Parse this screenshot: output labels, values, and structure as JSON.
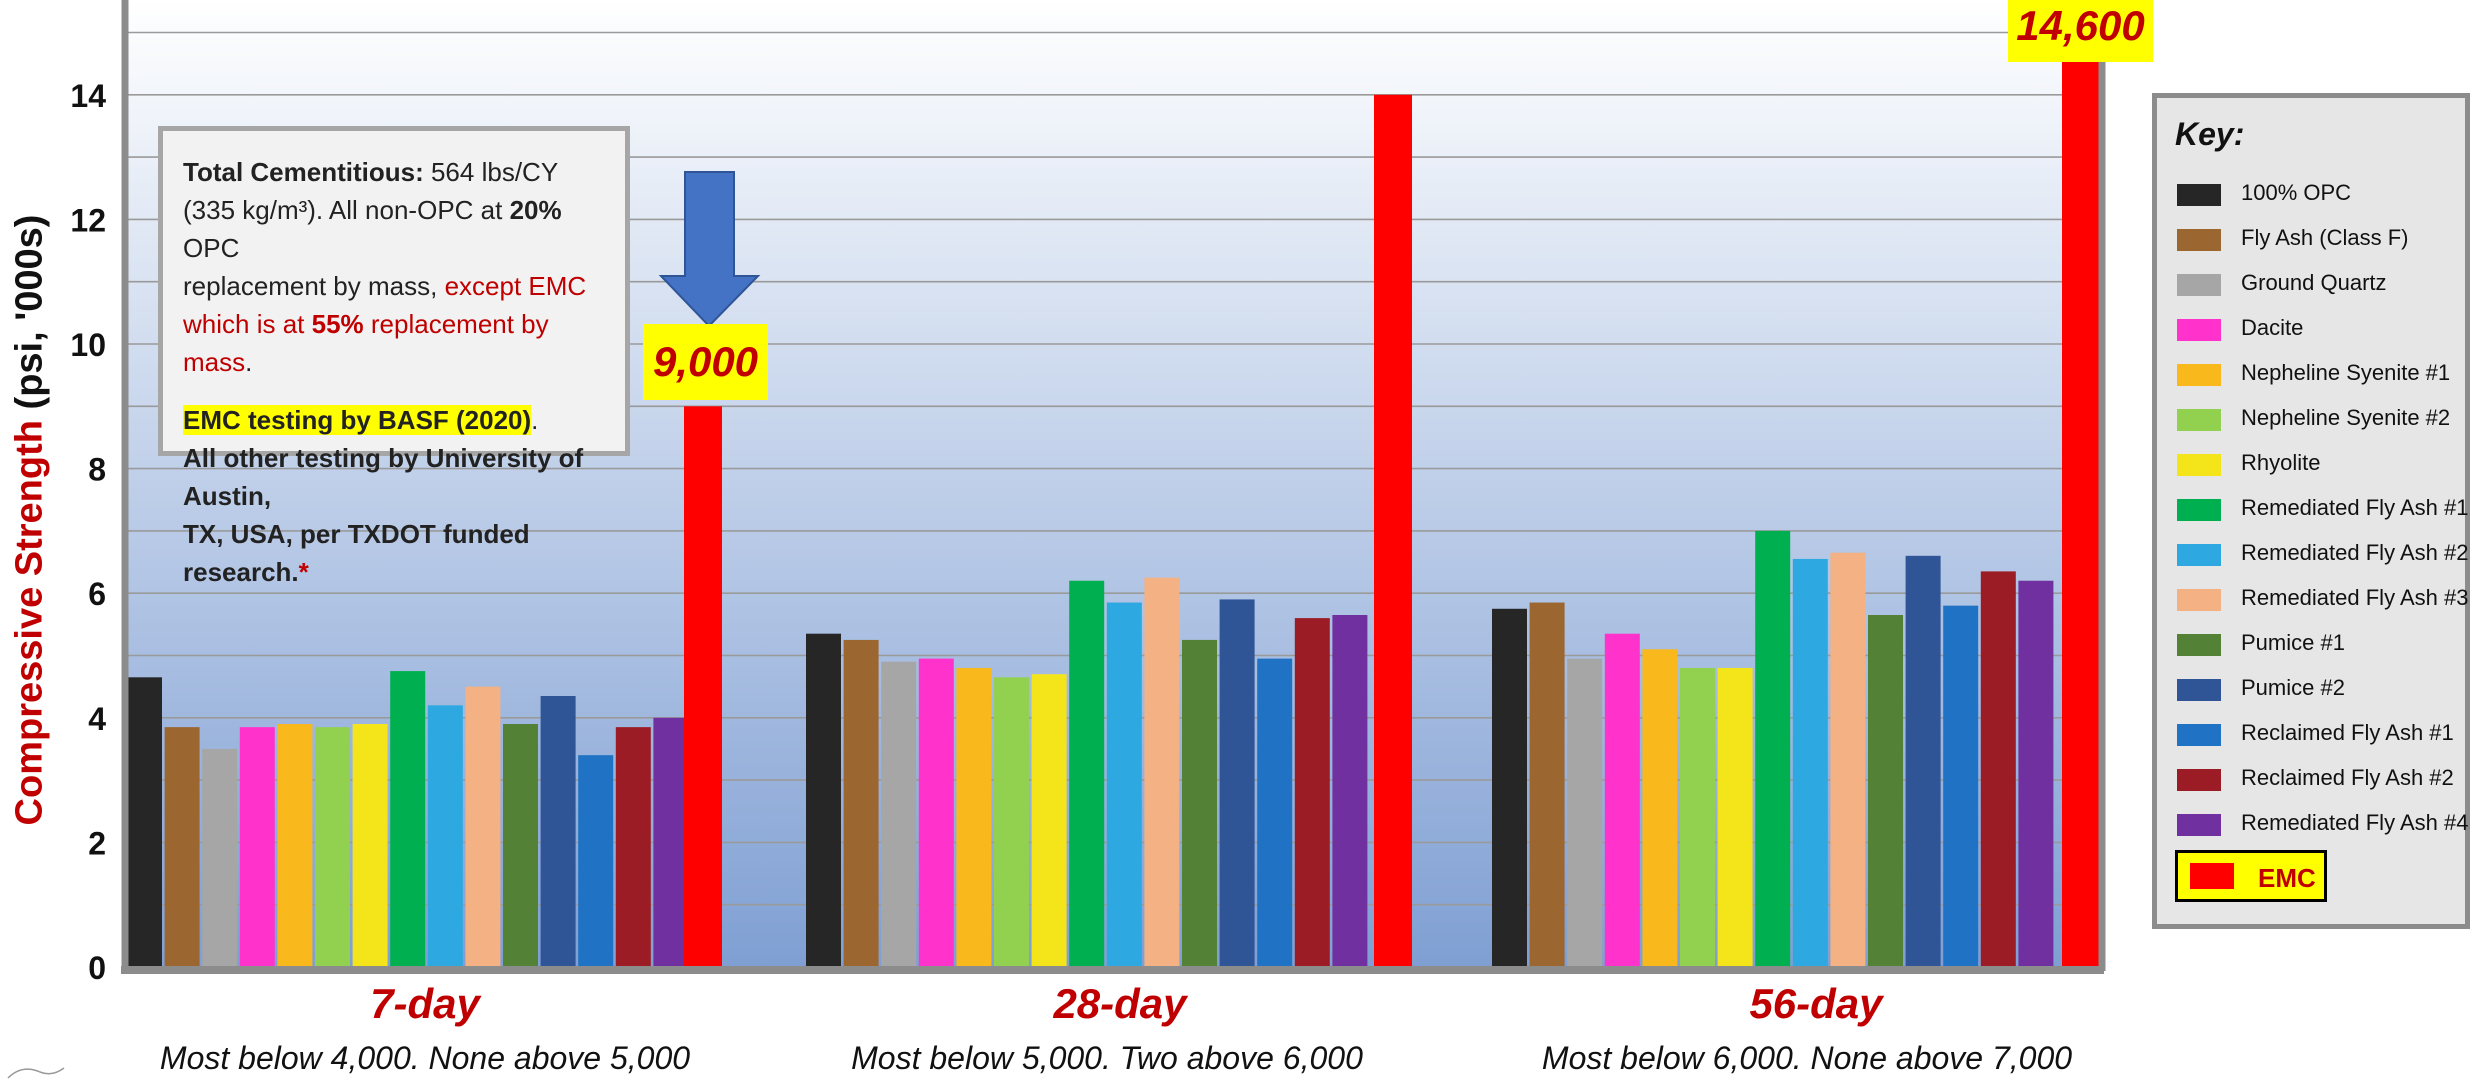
{
  "chart_data": {
    "type": "bar",
    "ylabel_red": "Compressive Strength",
    "ylabel_black": " (psi, '000s)",
    "ylim": [
      0,
      14.6
    ],
    "yticks": [
      0,
      2,
      4,
      6,
      8,
      10,
      12,
      14
    ],
    "grid": true,
    "legend_position": "right",
    "legend_title": "Key:",
    "categories": [
      "7-day",
      "28-day",
      "56-day"
    ],
    "category_notes": [
      "Most below 4,000. None above 5,000",
      "Most below 5,000. Two above 6,000",
      "Most below 6,000. None above 7,000"
    ],
    "series": [
      {
        "name": "100% OPC",
        "color": "#262626",
        "values": [
          4.65,
          5.35,
          5.75
        ]
      },
      {
        "name": "Fly Ash (Class F)",
        "color": "#9c6630",
        "values": [
          3.85,
          5.25,
          5.85
        ]
      },
      {
        "name": "Ground Quartz",
        "color": "#a6a6a6",
        "values": [
          3.5,
          4.9,
          4.95
        ]
      },
      {
        "name": "Dacite",
        "color": "#ff33cc",
        "values": [
          3.85,
          4.95,
          5.35
        ]
      },
      {
        "name": "Nepheline Syenite #1",
        "color": "#f9b81b",
        "values": [
          3.9,
          4.8,
          5.1
        ]
      },
      {
        "name": "Nepheline Syenite #2",
        "color": "#92d050",
        "values": [
          3.85,
          4.65,
          4.8
        ]
      },
      {
        "name": "Rhyolite",
        "color": "#f4e51a",
        "values": [
          3.9,
          4.7,
          4.8
        ]
      },
      {
        "name": "Remediated Fly Ash #1",
        "color": "#00b050",
        "values": [
          4.75,
          6.2,
          7.0
        ]
      },
      {
        "name": "Remediated Fly Ash #2",
        "color": "#2ea8e0",
        "values": [
          4.2,
          5.85,
          6.55
        ]
      },
      {
        "name": "Remediated Fly Ash #3",
        "color": "#f4b183",
        "values": [
          4.5,
          6.25,
          6.65
        ]
      },
      {
        "name": "Pumice #1",
        "color": "#538135",
        "values": [
          3.9,
          5.25,
          5.65
        ]
      },
      {
        "name": "Pumice #2",
        "color": "#2f5597",
        "values": [
          4.35,
          5.9,
          6.6
        ]
      },
      {
        "name": "Reclaimed Fly Ash #1",
        "color": "#1f72c4",
        "values": [
          3.4,
          4.95,
          5.8
        ]
      },
      {
        "name": "Reclaimed Fly Ash #2",
        "color": "#9b1c24",
        "values": [
          3.85,
          5.6,
          6.35
        ]
      },
      {
        "name": "Remediated Fly Ash #4",
        "color": "#7030a0",
        "values": [
          4.0,
          5.65,
          6.2
        ]
      },
      {
        "name": "EMC",
        "color": "#ff0000",
        "values": [
          9.0,
          14.0,
          14.6
        ]
      }
    ],
    "annotations": [
      "9,000",
      "14,600"
    ]
  },
  "note": {
    "l1_bold": "Total Cementitious:",
    "l1_rest": " 564 lbs/CY",
    "l2": "(335 kg/m³). All non-OPC at ",
    "l2_bold": "20%",
    "l2_rest": " OPC",
    "l3_a": "replacement by mass, ",
    "l3_red": "except EMC",
    "l4_red": "which is at ",
    "l4_red_bold": "55%",
    "l4_red2": " replacement by mass",
    "l4_end": ".",
    "l5_hl": "EMC testing by BASF (2020)",
    "l5_end": ".",
    "l6": "All other testing by University of Austin,",
    "l7": "TX, USA, per TXDOT funded research.",
    "l7_star": "*"
  },
  "emc_key_label": "EMC"
}
